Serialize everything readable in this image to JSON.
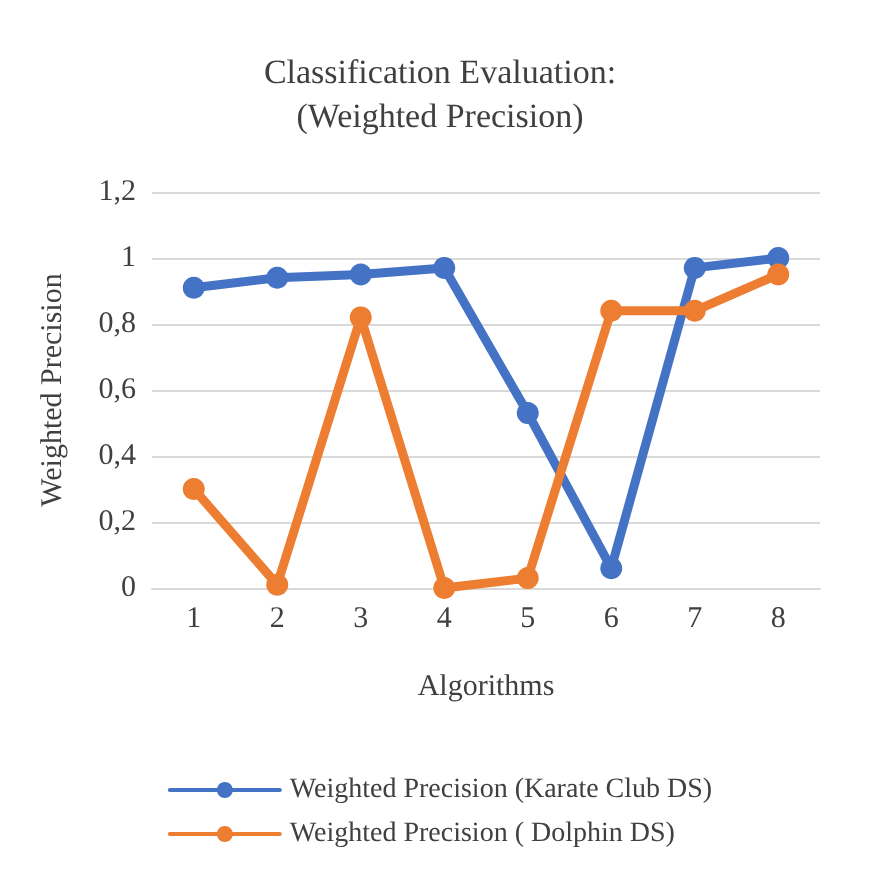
{
  "chart_data": {
    "type": "line",
    "title": "Classification Evaluation:\n(Weighted Precision)",
    "xlabel": "Algorithms",
    "ylabel": "Weighted Precision",
    "categories": [
      "1",
      "2",
      "3",
      "4",
      "5",
      "6",
      "7",
      "8"
    ],
    "series": [
      {
        "name": "Weighted Precision (Karate Club DS)",
        "color": "#4472c4",
        "values": [
          0.91,
          0.94,
          0.95,
          0.97,
          0.53,
          0.06,
          0.97,
          1.0
        ]
      },
      {
        "name": "Weighted Precision ( Dolphin DS)",
        "color": "#ed7d31",
        "values": [
          0.3,
          0.01,
          0.82,
          0.0,
          0.03,
          0.84,
          0.84,
          0.95
        ]
      }
    ],
    "ylim": [
      0,
      1.2
    ],
    "yticks": [
      0,
      {
        "value": 0.2,
        "label": "0,2"
      },
      {
        "value": 0.4,
        "label": "0,4"
      },
      {
        "value": 0.6,
        "label": "0,6"
      },
      {
        "value": 0.8,
        "label": "0,8"
      },
      1,
      {
        "value": 1.2,
        "label": "1,2"
      }
    ],
    "grid": "y",
    "legend": "bottom",
    "marker": "circle",
    "line_style": "solid"
  }
}
